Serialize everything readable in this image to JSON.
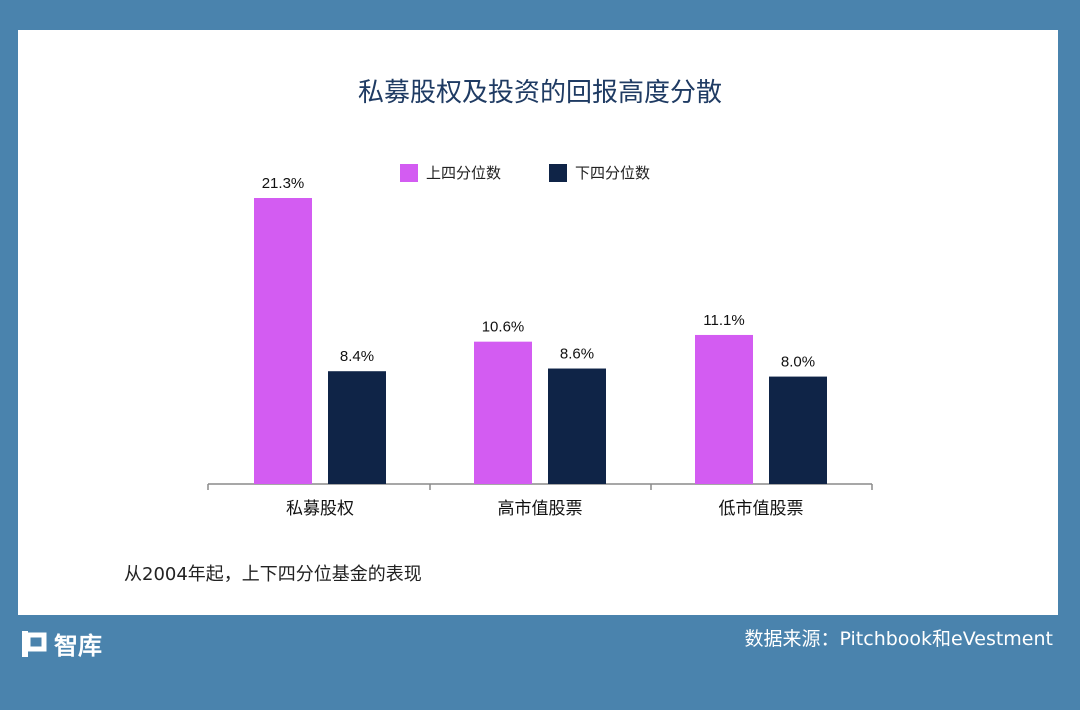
{
  "chart_data": {
    "type": "bar",
    "title": "私募股权及投资的回报高度分散",
    "categories": [
      "私募股权",
      "高市值股票",
      "低市值股票"
    ],
    "series": [
      {
        "name": "上四分位数",
        "values": [
          21.3,
          10.6,
          11.1
        ],
        "labels": [
          "21.3%",
          "10.6%",
          "11.1%"
        ],
        "color": "#d35cf2"
      },
      {
        "name": "下四分位数",
        "values": [
          8.4,
          8.6,
          8.0
        ],
        "labels": [
          "8.4%",
          "8.6%",
          "8.0%"
        ],
        "color": "#0f2447"
      }
    ],
    "ylim": [
      0,
      22
    ],
    "grid": false,
    "legend_position": "top-center",
    "subtitle": "从2004年起，上下四分位基金的表现"
  },
  "footer": {
    "logo_text": "智库",
    "source": "数据来源：Pitchbook和eVestment"
  },
  "colors": {
    "background": "#4a83ad",
    "panel": "#ffffff",
    "title": "#1f3b63"
  }
}
